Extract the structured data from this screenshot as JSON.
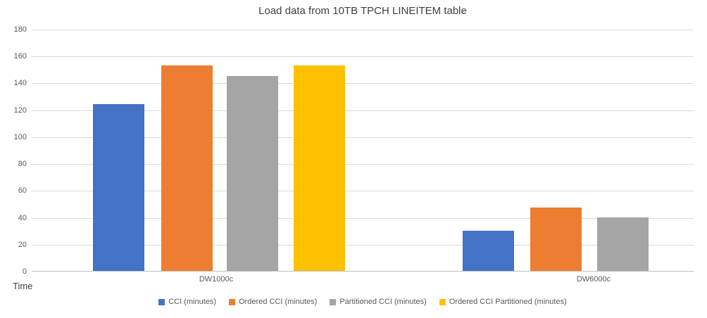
{
  "chart_data": {
    "type": "bar",
    "title": "Load data from 10TB TPCH LINEITEM table",
    "categories": [
      "DW1000c",
      "DW6000c"
    ],
    "series": [
      {
        "name": "CCI (minutes)",
        "color": "#4472C4",
        "values": [
          124,
          30
        ]
      },
      {
        "name": "Ordered CCI (minutes)",
        "color": "#ED7D31",
        "values": [
          153,
          47
        ]
      },
      {
        "name": "Partitioned CCI (minutes)",
        "color": "#A5A5A5",
        "values": [
          145,
          40
        ]
      },
      {
        "name": "Ordered CCI Partitioned (minutes)",
        "color": "#FFC000",
        "values": [
          153,
          null
        ]
      }
    ],
    "xlabel": "",
    "ylabel": "Time",
    "ylim": [
      0,
      180
    ],
    "ytick_step": 20,
    "grid": true,
    "legend_position": "bottom",
    "colors": {
      "gridline": "#D9D9D9",
      "axis_line": "#BFBFBF",
      "tick_text": "#595959",
      "title_text": "#404040",
      "background": "#FFFFFF"
    }
  }
}
